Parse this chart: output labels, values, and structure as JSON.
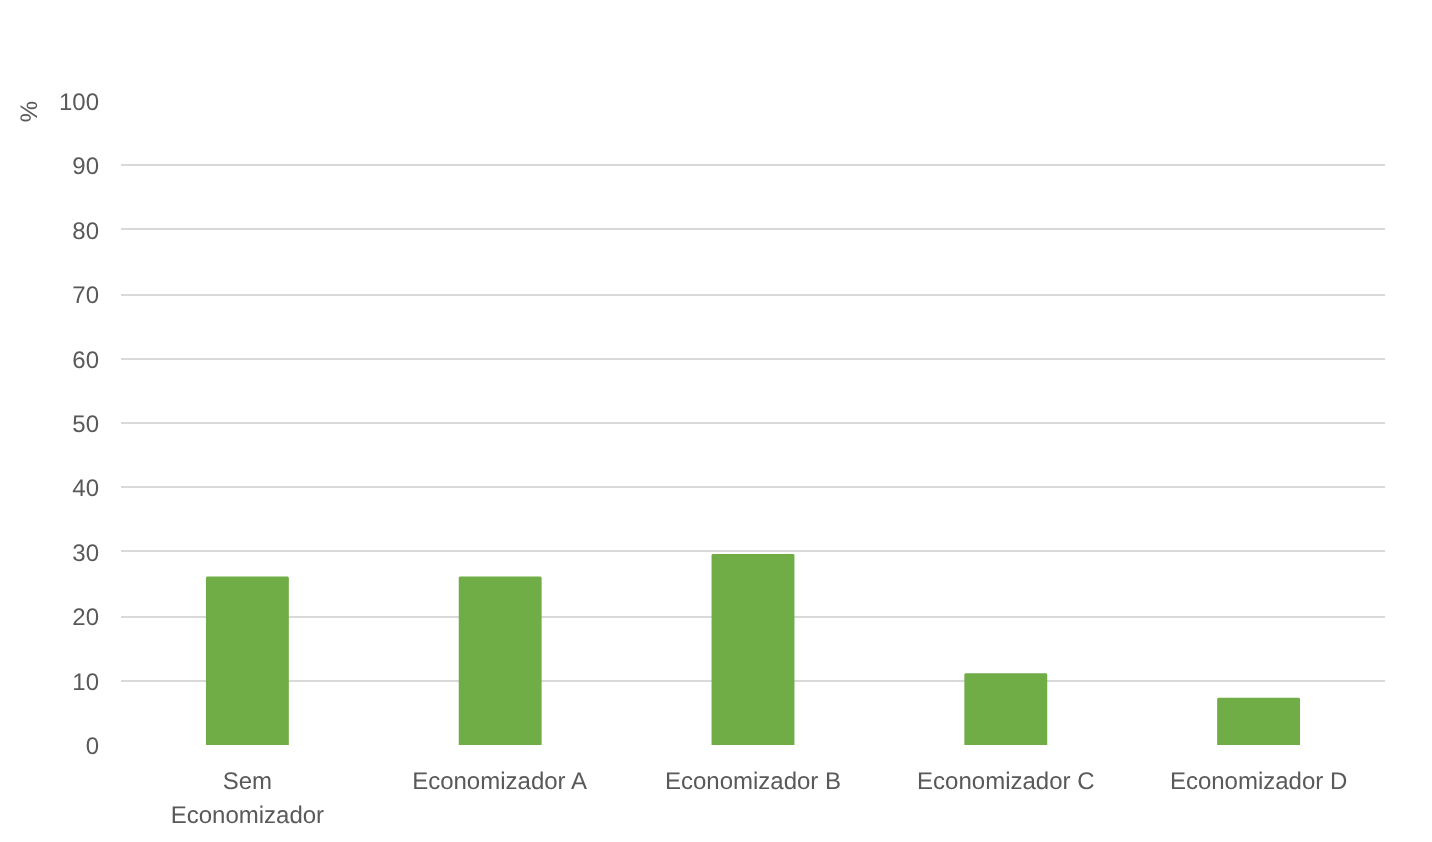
{
  "chart_data": {
    "type": "bar",
    "ylabel": "%",
    "categories": [
      "Sem\nEconomizador",
      "Economizador A",
      "Economizador B",
      "Economizador C",
      "Economizador D"
    ],
    "values": [
      26,
      26,
      29.5,
      11,
      7.2
    ],
    "color": "#70ad47",
    "ylim": [
      0,
      100
    ],
    "yticks": [
      0,
      10,
      20,
      30,
      40,
      50,
      60,
      70,
      80,
      90,
      100
    ],
    "grid": "y"
  }
}
